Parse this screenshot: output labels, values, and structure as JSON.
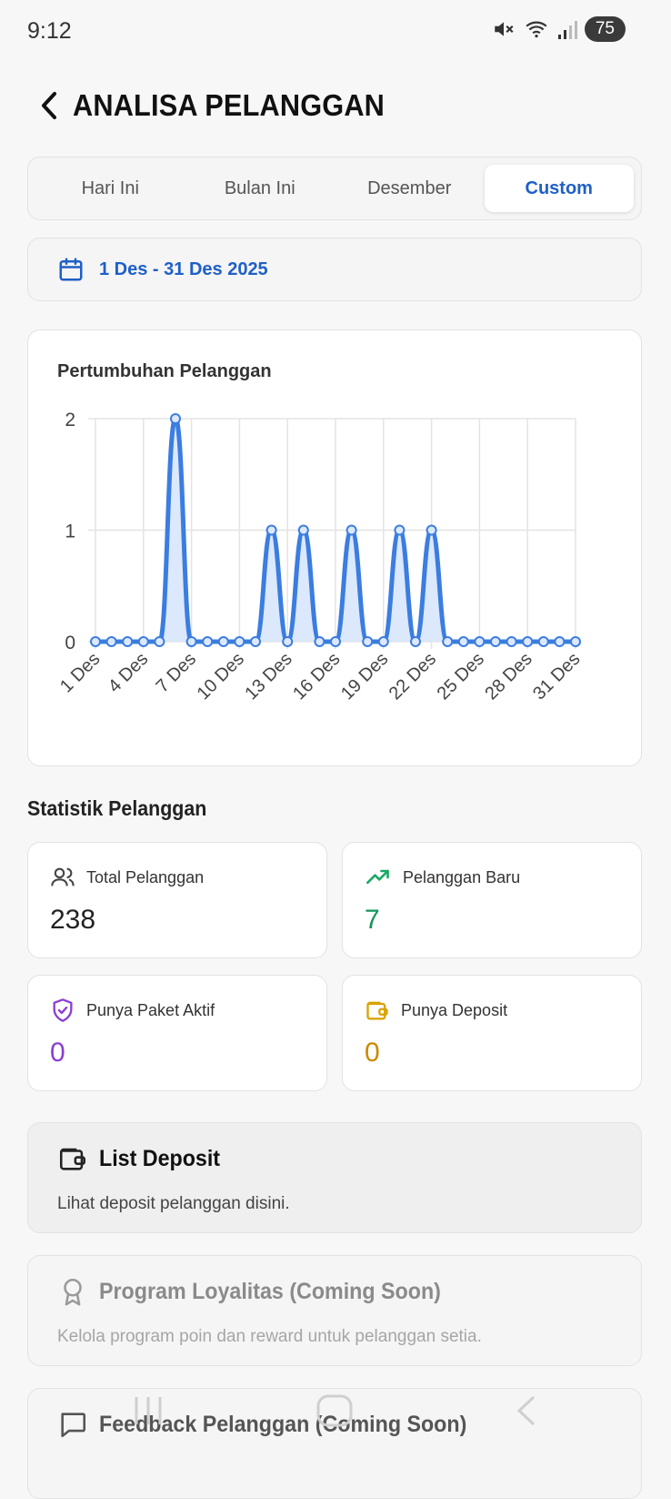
{
  "status": {
    "time": "9:12",
    "battery": "75"
  },
  "header": {
    "title": "ANALISA PELANGGAN"
  },
  "tabs": [
    {
      "label": "Hari Ini",
      "active": false
    },
    {
      "label": "Bulan Ini",
      "active": false
    },
    {
      "label": "Desember",
      "active": false
    },
    {
      "label": "Custom",
      "active": true
    }
  ],
  "date_range": {
    "label": "1 Des - 31 Des 2025"
  },
  "chart": {
    "title": "Pertumbuhan Pelanggan"
  },
  "chart_data": {
    "type": "line",
    "title": "Pertumbuhan Pelanggan",
    "categories": [
      "1 Des",
      "2 Des",
      "3 Des",
      "4 Des",
      "5 Des",
      "6 Des",
      "7 Des",
      "8 Des",
      "9 Des",
      "10 Des",
      "11 Des",
      "12 Des",
      "13 Des",
      "14 Des",
      "15 Des",
      "16 Des",
      "17 Des",
      "18 Des",
      "19 Des",
      "20 Des",
      "21 Des",
      "22 Des",
      "23 Des",
      "24 Des",
      "25 Des",
      "26 Des",
      "27 Des",
      "28 Des",
      "29 Des",
      "30 Des",
      "31 Des"
    ],
    "tick_labels": [
      "1 Des",
      "4 Des",
      "7 Des",
      "10 Des",
      "13 Des",
      "16 Des",
      "19 Des",
      "22 Des",
      "25 Des",
      "28 Des",
      "31 Des"
    ],
    "series": [
      {
        "values": [
          0,
          0,
          0,
          0,
          0,
          2,
          0,
          0,
          0,
          0,
          0,
          1,
          0,
          1,
          0,
          0,
          1,
          0,
          0,
          1,
          0,
          1,
          0,
          0,
          0,
          0,
          0,
          0,
          0,
          0,
          0
        ]
      }
    ],
    "ylim": [
      0,
      2
    ],
    "yticks": [
      0,
      1,
      2
    ],
    "grid": true,
    "color": "#3b7de0",
    "fill": "#dce8fb"
  },
  "stats": {
    "title": "Statistik Pelanggan",
    "total": {
      "label": "Total Pelanggan",
      "value": "238",
      "color": "#222222"
    },
    "new": {
      "label": "Pelanggan Baru",
      "value": "7",
      "color": "#12945a"
    },
    "active_package": {
      "label": "Punya Paket Aktif",
      "value": "0",
      "color": "#8a3fd1"
    },
    "deposit": {
      "label": "Punya Deposit",
      "value": "0",
      "color": "#c98a00"
    }
  },
  "lists": [
    {
      "title": "List Deposit",
      "desc": "Lihat deposit pelanggan disini.",
      "icon": "wallet-icon"
    },
    {
      "title": "Program Loyalitas (Coming Soon)",
      "desc": "Kelola program poin dan reward untuk pelanggan setia.",
      "icon": "award-icon"
    },
    {
      "title": "Feedback Pelanggan (Coming Soon)",
      "desc": "",
      "icon": "message-icon"
    }
  ]
}
